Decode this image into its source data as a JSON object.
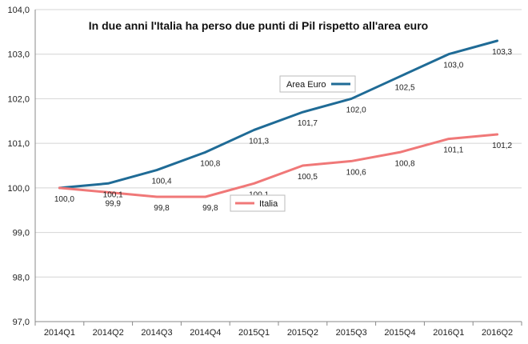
{
  "chart_data": {
    "type": "line",
    "title": "In due anni l'Italia ha perso due punti di Pil rispetto all'area euro",
    "categories": [
      "2014Q1",
      "2014Q2",
      "2014Q3",
      "2014Q4",
      "2015Q1",
      "2015Q2",
      "2015Q3",
      "2015Q4",
      "2016Q1",
      "2016Q2"
    ],
    "ylim": [
      97.0,
      104.0
    ],
    "yticks": [
      "97,0",
      "98,0",
      "99,0",
      "100,0",
      "101,0",
      "102,0",
      "103,0",
      "104,0"
    ],
    "grid": true,
    "series": [
      {
        "name": "Area Euro",
        "color": "#1f6b96",
        "values": [
          100.0,
          100.1,
          100.4,
          100.8,
          101.3,
          101.7,
          102.0,
          102.5,
          103.0,
          103.3
        ],
        "labels": [
          "",
          "100,1",
          "100,4",
          "100,8",
          "101,3",
          "101,7",
          "102,0",
          "102,5",
          "103,0",
          "103,3"
        ]
      },
      {
        "name": "Italia",
        "color": "#f07878",
        "values": [
          100.0,
          99.9,
          99.8,
          99.8,
          100.1,
          100.5,
          100.6,
          100.8,
          101.1,
          101.2
        ],
        "labels": [
          "100,0",
          "99,9",
          "99,8",
          "99,8",
          "100,1",
          "100,5",
          "100,6",
          "100,8",
          "101,1",
          "101,2"
        ]
      }
    ]
  }
}
